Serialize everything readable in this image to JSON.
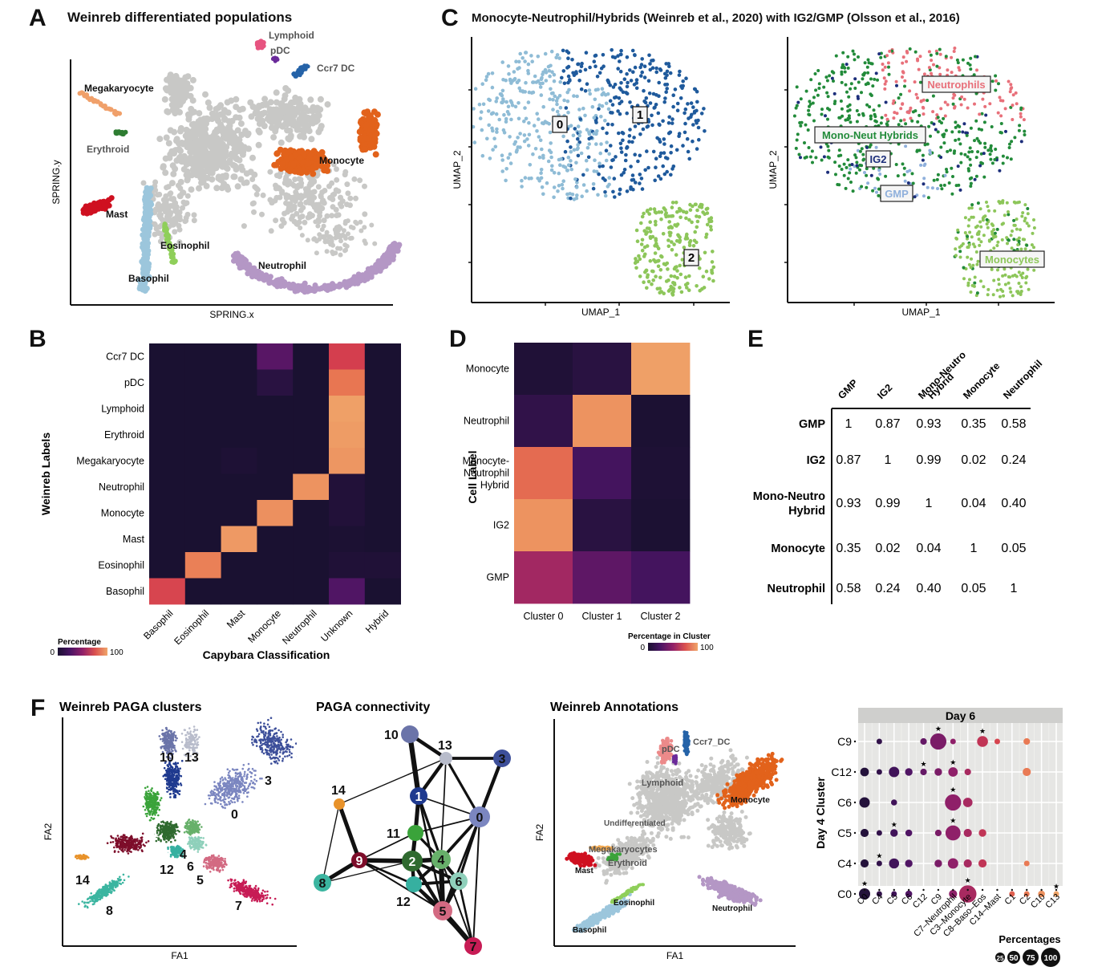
{
  "colors": {
    "grey": "#c8c8c6",
    "cool_dark": "#1a1330",
    "inferno_low": "#1a1131",
    "inferno_mid": "#7e1f6e",
    "inferno_high": "#efa06a"
  },
  "panels": {
    "A": {
      "letter": "A",
      "title": "Weinreb differentiated populations"
    },
    "B": {
      "letter": "B"
    },
    "C": {
      "letter": "C",
      "title": "Monocyte-Neutrophil/Hybrids (Weinreb et al., 2020) with IG2/GMP (Olsson et al., 2016)"
    },
    "D": {
      "letter": "D"
    },
    "E": {
      "letter": "E"
    },
    "F": {
      "letter": "F"
    }
  },
  "chart_data": [
    {
      "id": "A",
      "type": "scatter",
      "title": "Weinreb differentiated populations",
      "xlabel": "SPRING.x",
      "ylabel": "SPRING.y",
      "grid": false,
      "populations": [
        {
          "name": "Lymphoid",
          "color": "#e75480",
          "label_color": "#555555"
        },
        {
          "name": "pDC",
          "color": "#6a2a9a",
          "label_color": "#555555"
        },
        {
          "name": "Ccr7 DC",
          "color": "#2563a8",
          "label_color": "#555555"
        },
        {
          "name": "Megakaryocyte",
          "color": "#f0a06a",
          "label_color": "#111111"
        },
        {
          "name": "Erythroid",
          "color": "#2e7d32",
          "label_color": "#555555"
        },
        {
          "name": "Monocyte",
          "color": "#e2621b",
          "label_color": "#111111"
        },
        {
          "name": "Mast",
          "color": "#cf1020",
          "label_color": "#111111"
        },
        {
          "name": "Eosinophil",
          "color": "#8fcf5a",
          "label_color": "#111111"
        },
        {
          "name": "Basophil",
          "color": "#9cc6dc",
          "label_color": "#111111"
        },
        {
          "name": "Neutrophil",
          "color": "#b497c5",
          "label_color": "#111111"
        },
        {
          "name": "Undifferentiated",
          "color": "#c8c8c6",
          "label_color": ""
        }
      ]
    },
    {
      "id": "B",
      "type": "heatmap",
      "xlabel": "Capybara Classification",
      "ylabel": "Weinreb Labels",
      "legend_title": "Percentage",
      "legend_min": "0",
      "legend_max": "100",
      "x": [
        "Basophil",
        "Eosinophil",
        "Mast",
        "Monocyte",
        "Neutrophil",
        "Unknown",
        "Hybrid"
      ],
      "y": [
        "Ccr7 DC",
        "pDC",
        "Lymphoid",
        "Erythroid",
        "Megakaryocyte",
        "Neutrophil",
        "Monocyte",
        "Mast",
        "Eosinophil",
        "Basophil"
      ],
      "values": [
        [
          0,
          0,
          0,
          30,
          0,
          70,
          0
        ],
        [
          0,
          0,
          0,
          8,
          0,
          85,
          0
        ],
        [
          0,
          0,
          0,
          0,
          0,
          98,
          0
        ],
        [
          0,
          0,
          0,
          0,
          0,
          97,
          0
        ],
        [
          0,
          0,
          2,
          0,
          0,
          95,
          0
        ],
        [
          0,
          0,
          0,
          0,
          94,
          4,
          0
        ],
        [
          0,
          0,
          0,
          93,
          0,
          4,
          0
        ],
        [
          0,
          0,
          96,
          0,
          0,
          1,
          0
        ],
        [
          0,
          88,
          0,
          0,
          0,
          3,
          3
        ],
        [
          72,
          0,
          0,
          0,
          0,
          27,
          0
        ]
      ]
    },
    {
      "id": "C-left",
      "type": "scatter",
      "xlabel": "UMAP_1",
      "ylabel": "UMAP_2",
      "clusters": [
        {
          "name": "0",
          "color": "#8fbcd6"
        },
        {
          "name": "1",
          "color": "#1f5a9c"
        },
        {
          "name": "2",
          "color": "#8dc65a"
        }
      ]
    },
    {
      "id": "C-right",
      "type": "scatter",
      "xlabel": "UMAP_1",
      "ylabel": "UMAP_2",
      "labels": [
        {
          "name": "Neutrophils",
          "color": "#e8707a"
        },
        {
          "name": "Mono-Neut Hybrids",
          "color": "#228b3a"
        },
        {
          "name": "IG2",
          "color": "#1c2e7a"
        },
        {
          "name": "GMP",
          "color": "#8fb0dc"
        },
        {
          "name": "Monocytes",
          "color": "#8dc65a"
        }
      ]
    },
    {
      "id": "D",
      "type": "heatmap",
      "ylabel": "Cell Label",
      "legend_title": "Percentage in Cluster",
      "legend_min": "0",
      "legend_max": "100",
      "x": [
        "Cluster 0",
        "Cluster 1",
        "Cluster 2"
      ],
      "y": [
        "Monocyte",
        "Neutrophil",
        "Monocyte-Neutrophil Hybrid",
        "IG2",
        "GMP"
      ],
      "y_display": [
        [
          "Monocyte"
        ],
        [
          "Neutrophil"
        ],
        [
          "Monocyte-",
          "Neutrophil",
          "Hybrid"
        ],
        [
          "IG2"
        ],
        [
          "GMP"
        ]
      ],
      "values": [
        [
          3,
          8,
          98
        ],
        [
          12,
          94,
          1
        ],
        [
          82,
          22,
          2
        ],
        [
          94,
          8,
          1
        ],
        [
          55,
          32,
          22
        ]
      ]
    },
    {
      "id": "E",
      "type": "table",
      "columns": [
        "GMP",
        "IG2",
        "Mono-Neutro Hybrid",
        "Monocyte",
        "Neutrophil"
      ],
      "columns_display": [
        [
          "GMP"
        ],
        [
          "IG2"
        ],
        [
          "Mono-Neutro",
          "Hybrid"
        ],
        [
          "Monocyte"
        ],
        [
          "Neutrophil"
        ]
      ],
      "rows": [
        "GMP",
        "IG2",
        "Mono-Neutro Hybrid",
        "Monocyte",
        "Neutrophil"
      ],
      "rows_display": [
        [
          "GMP"
        ],
        [
          "IG2"
        ],
        [
          "Mono-Neutro",
          "Hybrid"
        ],
        [
          "Monocyte"
        ],
        [
          "Neutrophil"
        ]
      ],
      "values": [
        [
          "1",
          "0.87",
          "0.93",
          "0.35",
          "0.58"
        ],
        [
          "0.87",
          "1",
          "0.99",
          "0.02",
          "0.24"
        ],
        [
          "0.93",
          "0.99",
          "1",
          "0.04",
          "0.40"
        ],
        [
          "0.35",
          "0.02",
          "0.04",
          "1",
          "0.05"
        ],
        [
          "0.58",
          "0.24",
          "0.40",
          "0.05",
          "1"
        ]
      ]
    },
    {
      "id": "F-clusters",
      "type": "scatter",
      "title": "Weinreb PAGA clusters",
      "xlabel": "FA1",
      "ylabel": "FA2",
      "clusters": [
        {
          "name": "0",
          "color": "#7b86c0",
          "label_color": "#111"
        },
        {
          "name": "1",
          "color": "#1f3a8f",
          "label_color": "#fff"
        },
        {
          "name": "2",
          "color": "#2f6a2f",
          "label_color": "#fff"
        },
        {
          "name": "3",
          "color": "#3d4f9a",
          "label_color": "#111"
        },
        {
          "name": "4",
          "color": "#67b06a",
          "label_color": "#111"
        },
        {
          "name": "5",
          "color": "#d36a82",
          "label_color": "#111"
        },
        {
          "name": "6",
          "color": "#8fd0bb",
          "label_color": "#111"
        },
        {
          "name": "7",
          "color": "#c71c55",
          "label_color": "#111"
        },
        {
          "name": "8",
          "color": "#3bb5a0",
          "label_color": "#111"
        },
        {
          "name": "9",
          "color": "#7d0d2a",
          "label_color": "#fff"
        },
        {
          "name": "10",
          "color": "#6b74a9",
          "label_color": "#111"
        },
        {
          "name": "11",
          "color": "#3aa33a",
          "label_color": "#fff"
        },
        {
          "name": "12",
          "color": "#36b0a0",
          "label_color": "#111"
        },
        {
          "name": "13",
          "color": "#b8bccb",
          "label_color": "#111"
        },
        {
          "name": "14",
          "color": "#e8922a",
          "label_color": "#111"
        }
      ]
    },
    {
      "id": "F-paga",
      "type": "network",
      "title": "PAGA connectivity",
      "nodes": [
        {
          "id": "0",
          "color": "#7b86c0"
        },
        {
          "id": "1",
          "color": "#1f3a8f"
        },
        {
          "id": "2",
          "color": "#2f6a2f"
        },
        {
          "id": "3",
          "color": "#3d4f9a"
        },
        {
          "id": "4",
          "color": "#67b06a"
        },
        {
          "id": "5",
          "color": "#d36a82"
        },
        {
          "id": "6",
          "color": "#8fd0bb"
        },
        {
          "id": "7",
          "color": "#c71c55"
        },
        {
          "id": "8",
          "color": "#3bb5a0"
        },
        {
          "id": "9",
          "color": "#7d0d2a"
        },
        {
          "id": "10",
          "color": "#6b74a9"
        },
        {
          "id": "11",
          "color": "#3aa33a"
        },
        {
          "id": "12",
          "color": "#36b0a0"
        },
        {
          "id": "13",
          "color": "#b8bccb"
        },
        {
          "id": "14",
          "color": "#e8922a"
        }
      ],
      "edges": [
        [
          "10",
          "1",
          0.9
        ],
        [
          "10",
          "13",
          0.6
        ],
        [
          "13",
          "3",
          0.5
        ],
        [
          "13",
          "1",
          0.6
        ],
        [
          "13",
          "0",
          0.4
        ],
        [
          "13",
          "4",
          0.15
        ],
        [
          "13",
          "14",
          0.1
        ],
        [
          "3",
          "0",
          0.6
        ],
        [
          "1",
          "0",
          0.15
        ],
        [
          "1",
          "11",
          0.7
        ],
        [
          "1",
          "4",
          0.4
        ],
        [
          "1",
          "5",
          0.3
        ],
        [
          "11",
          "0",
          0.15
        ],
        [
          "11",
          "2",
          0.7
        ],
        [
          "11",
          "9",
          0.15
        ],
        [
          "11",
          "4",
          0.4
        ],
        [
          "0",
          "4",
          0.5
        ],
        [
          "0",
          "6",
          0.4
        ],
        [
          "0",
          "5",
          0.3
        ],
        [
          "0",
          "7",
          0.2
        ],
        [
          "14",
          "9",
          0.7
        ],
        [
          "14",
          "8",
          0.1
        ],
        [
          "9",
          "8",
          0.7
        ],
        [
          "9",
          "2",
          0.8
        ],
        [
          "9",
          "12",
          0.3
        ],
        [
          "9",
          "5",
          0.2
        ],
        [
          "8",
          "2",
          0.1
        ],
        [
          "2",
          "4",
          0.8
        ],
        [
          "2",
          "12",
          0.6
        ],
        [
          "2",
          "5",
          0.6
        ],
        [
          "2",
          "6",
          0.5
        ],
        [
          "4",
          "6",
          0.6
        ],
        [
          "4",
          "5",
          0.9
        ],
        [
          "4",
          "12",
          0.5
        ],
        [
          "12",
          "6",
          0.5
        ],
        [
          "12",
          "5",
          0.6
        ],
        [
          "6",
          "5",
          0.8
        ],
        [
          "5",
          "7",
          0.9
        ],
        [
          "6",
          "7",
          0.3
        ],
        [
          "4",
          "7",
          0.2
        ],
        [
          "12",
          "7",
          0.3
        ]
      ]
    },
    {
      "id": "F-annotations",
      "type": "scatter",
      "title": "Weinreb Annotations",
      "xlabel": "FA1",
      "ylabel": "FA2",
      "labels": [
        {
          "name": "Ccr7_DC",
          "color": "#2563a8",
          "label_color": "#555555"
        },
        {
          "name": "pDC",
          "color": "#6a2a9a",
          "label_color": "#555555"
        },
        {
          "name": "Lymphoid",
          "color": "#ec8a8a",
          "label_color": "#555555"
        },
        {
          "name": "Monocyte",
          "color": "#e2621b",
          "label_color": "#111111"
        },
        {
          "name": "Undifferentiated",
          "color": "#c8c8c6",
          "label_color": "#555555"
        },
        {
          "name": "Megakaryocytes",
          "color": "#f0a850",
          "label_color": "#555555"
        },
        {
          "name": "Erythroid",
          "color": "#3aa33a",
          "label_color": "#555555"
        },
        {
          "name": "Mast",
          "color": "#cf1020",
          "label_color": "#111111"
        },
        {
          "name": "Eosinophil",
          "color": "#8fcf5a",
          "label_color": "#111111"
        },
        {
          "name": "Neutrophil",
          "color": "#b497c5",
          "label_color": "#111111"
        },
        {
          "name": "Basophil",
          "color": "#9cc6dc",
          "label_color": "#111111"
        }
      ]
    },
    {
      "id": "F-dotplot",
      "type": "scatter",
      "facet": "Day 6",
      "ylabel": "Day 4 Cluster",
      "x": [
        "C0",
        "C4",
        "C5",
        "C6",
        "C12",
        "C9",
        "C7–Neutrophil",
        "C3–Monocyte",
        "C8–Baso–Eos",
        "C14–Mast",
        "C1",
        "C2",
        "C10",
        "C13"
      ],
      "y": [
        "C9",
        "C12",
        "C6",
        "C5",
        "C4",
        "C0"
      ],
      "size_legend_title": "Percentages",
      "size_legend": [
        "25",
        "50",
        "75",
        "100"
      ],
      "values": [
        [
          null,
          3,
          null,
          null,
          5,
          60,
          3,
          null,
          22,
          3,
          null,
          5,
          null,
          null
        ],
        [
          12,
          3,
          20,
          8,
          5,
          8,
          15,
          5,
          null,
          null,
          null,
          10,
          null,
          null
        ],
        [
          20,
          null,
          4,
          null,
          null,
          null,
          60,
          15,
          null,
          null,
          null,
          null,
          null,
          null
        ],
        [
          10,
          3,
          8,
          6,
          null,
          5,
          50,
          10,
          8,
          null,
          null,
          null,
          null,
          null
        ],
        [
          10,
          3,
          18,
          8,
          null,
          8,
          20,
          10,
          10,
          null,
          null,
          3,
          null,
          null
        ],
        [
          24,
          3,
          3,
          6,
          null,
          null,
          10,
          70,
          null,
          null,
          3,
          3,
          6,
          3
        ]
      ],
      "significant": [
        [
          false,
          false,
          false,
          false,
          false,
          true,
          false,
          false,
          true,
          false,
          false,
          false,
          false,
          false
        ],
        [
          false,
          false,
          false,
          false,
          true,
          false,
          true,
          false,
          false,
          false,
          false,
          false,
          false,
          false
        ],
        [
          false,
          false,
          false,
          false,
          false,
          false,
          true,
          false,
          false,
          false,
          false,
          false,
          false,
          false
        ],
        [
          false,
          false,
          true,
          false,
          false,
          false,
          true,
          false,
          false,
          false,
          false,
          false,
          false,
          false
        ],
        [
          false,
          true,
          false,
          false,
          false,
          false,
          false,
          false,
          false,
          false,
          false,
          false,
          false,
          false
        ],
        [
          true,
          false,
          false,
          false,
          false,
          false,
          false,
          true,
          false,
          false,
          false,
          false,
          false,
          true
        ]
      ],
      "significance_marker": "★"
    }
  ]
}
